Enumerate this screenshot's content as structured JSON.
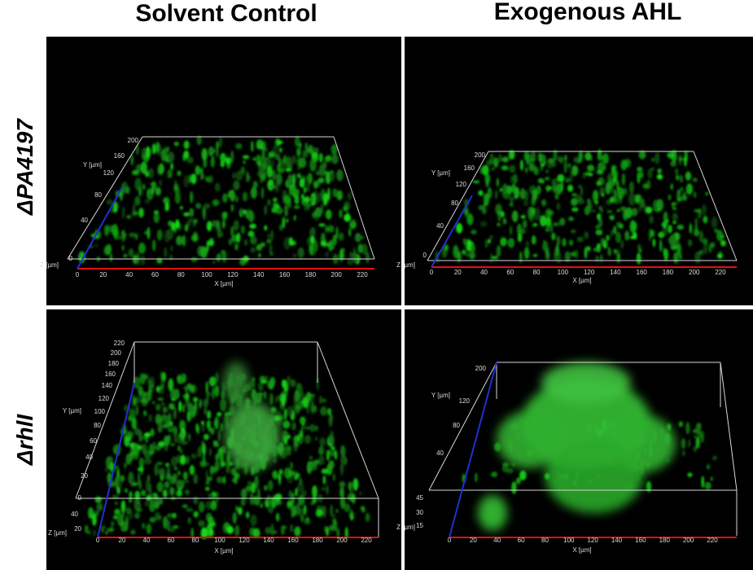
{
  "header": {
    "columns": [
      "Solvent Control",
      "Exogenous AHL"
    ],
    "rows": [
      "ΔPA4197",
      "ΔrhlI"
    ]
  },
  "panels": [
    {
      "x_label": "X [µm]",
      "y_label": "Y [µm]",
      "z_label": "Z [µm]",
      "x_ticks": [
        "0",
        "20",
        "40",
        "60",
        "80",
        "100",
        "120",
        "140",
        "160",
        "180",
        "200",
        "220"
      ],
      "y_ticks": [
        "200",
        "160",
        "120",
        "80",
        "40",
        "0"
      ],
      "z_ticks": []
    },
    {
      "x_label": "X [µm]",
      "y_label": "Y [µm]",
      "z_label": "Z [µm]",
      "x_ticks": [
        "0",
        "20",
        "40",
        "60",
        "80",
        "100",
        "120",
        "140",
        "160",
        "180",
        "200",
        "220"
      ],
      "y_ticks": [
        "200",
        "160",
        "120",
        "80",
        "40",
        "0"
      ],
      "z_ticks": []
    },
    {
      "x_label": "X [µm]",
      "y_label": "Y [µm]",
      "z_label": "Z [µm]",
      "x_ticks": [
        "0",
        "20",
        "40",
        "60",
        "80",
        "100",
        "120",
        "140",
        "160",
        "180",
        "200",
        "220"
      ],
      "y_ticks": [
        "220",
        "200",
        "180",
        "160",
        "140",
        "120",
        "100",
        "80",
        "60",
        "40",
        "20",
        "0"
      ],
      "z_ticks": [
        "40",
        "20"
      ]
    },
    {
      "x_label": "X [µm]",
      "y_label": "Y [µm]",
      "z_label": "Z [µm]",
      "x_ticks": [
        "0",
        "20",
        "40",
        "60",
        "80",
        "100",
        "120",
        "140",
        "160",
        "180",
        "200",
        "220"
      ],
      "y_ticks": [
        "200",
        "120",
        "80",
        "40"
      ],
      "z_ticks": [
        "45",
        "30",
        "15"
      ]
    }
  ]
}
